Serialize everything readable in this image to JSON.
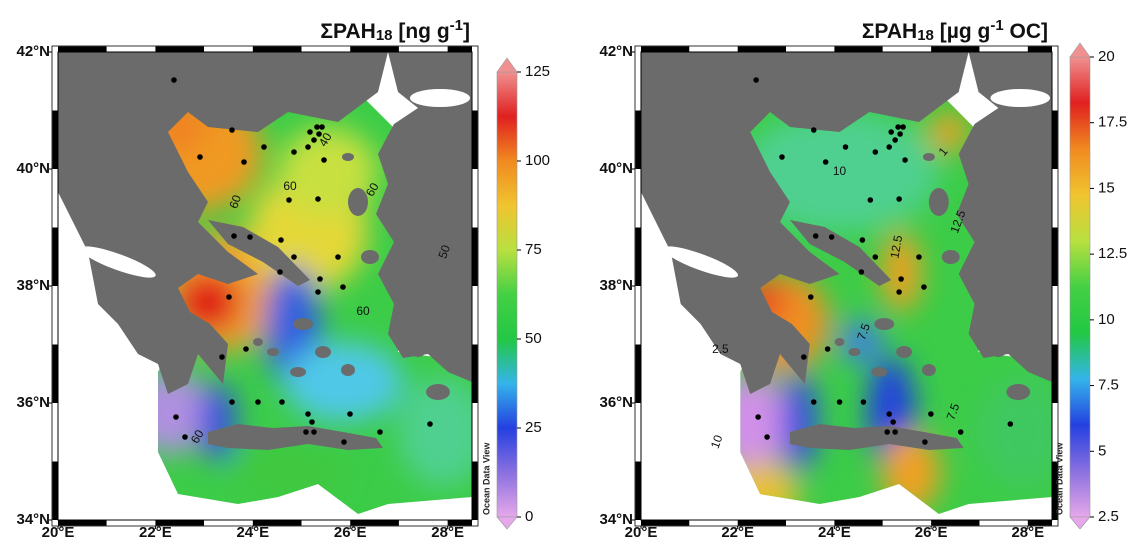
{
  "panels": [
    {
      "title": [
        "ΣPAH",
        "18",
        " [ng g",
        "-1",
        "]"
      ],
      "xlim": [
        20,
        28.5
      ],
      "ylim": [
        34,
        42
      ],
      "xticks": [
        {
          "value": 20,
          "label": "20°E"
        },
        {
          "value": 22,
          "label": "22°E"
        },
        {
          "value": 24,
          "label": "24°E"
        },
        {
          "value": 26,
          "label": "26°E"
        },
        {
          "value": 28,
          "label": "28°E"
        }
      ],
      "yticks": [
        {
          "value": 34,
          "label": "34°N"
        },
        {
          "value": 36,
          "label": "36°N"
        },
        {
          "value": 38,
          "label": "38°N"
        },
        {
          "value": 40,
          "label": "40°N"
        },
        {
          "value": 42,
          "label": "42°N"
        }
      ],
      "colorbar": {
        "lim": [
          0,
          125
        ],
        "ticks": [
          0,
          25,
          50,
          75,
          100,
          125
        ],
        "colors": [
          "#e6a8ea",
          "#8a70e0",
          "#2440e0",
          "#34b4ea",
          "#22c844",
          "#44d044",
          "#b8e040",
          "#f0c430",
          "#f08a20",
          "#e02020",
          "#f09090"
        ]
      },
      "watermark": "Ocean Data View",
      "contour_labels": [
        40,
        60,
        60,
        60,
        60,
        50,
        60
      ]
    },
    {
      "title": [
        "ΣPAH",
        "18",
        " [µg g",
        "-1",
        " OC]"
      ],
      "xlim": [
        20,
        28.5
      ],
      "ylim": [
        34,
        42
      ],
      "xticks": [
        {
          "value": 20,
          "label": "20°E"
        },
        {
          "value": 22,
          "label": "22°E"
        },
        {
          "value": 24,
          "label": "24°E"
        },
        {
          "value": 26,
          "label": "26°E"
        },
        {
          "value": 28,
          "label": "28°E"
        }
      ],
      "yticks": [
        {
          "value": 34,
          "label": "34°N"
        },
        {
          "value": 36,
          "label": "36°N"
        },
        {
          "value": 38,
          "label": "38°N"
        },
        {
          "value": 40,
          "label": "40°N"
        },
        {
          "value": 42,
          "label": "42°N"
        }
      ],
      "colorbar": {
        "lim": [
          2.5,
          20
        ],
        "ticks": [
          2.5,
          5,
          7.5,
          10,
          12.5,
          15,
          17.5,
          20
        ],
        "colors": [
          "#e6a8ea",
          "#8a70e0",
          "#2440e0",
          "#34b4ea",
          "#22c844",
          "#44d044",
          "#b8e040",
          "#f0c430",
          "#f08a20",
          "#e02020",
          "#f09090"
        ]
      },
      "watermark": "Ocean Data View",
      "contour_labels": [
        10,
        1,
        12.5,
        12.5,
        2.5,
        7.5,
        7.5,
        10
      ]
    }
  ]
}
